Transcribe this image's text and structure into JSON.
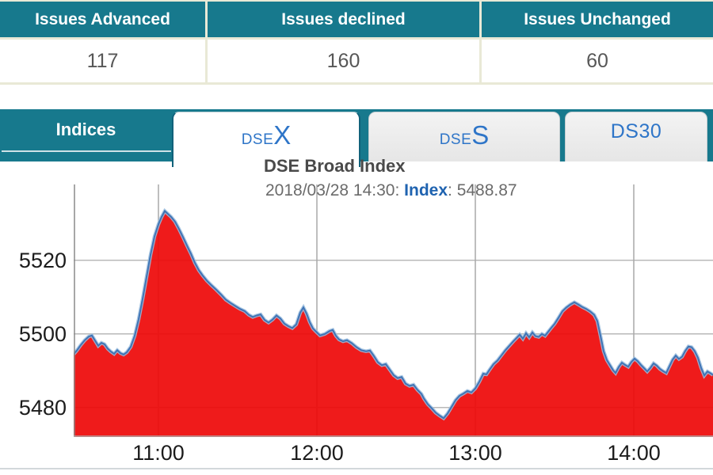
{
  "summary_table": {
    "columns": [
      {
        "header": "Issues Advanced",
        "value": "117"
      },
      {
        "header": "Issues declined",
        "value": "160"
      },
      {
        "header": "Issues Unchanged",
        "value": "60"
      }
    ]
  },
  "indices": {
    "bar_label": "Indices",
    "tabs": [
      {
        "prefix": "DSE",
        "suffix": "X"
      },
      {
        "prefix": "DSE",
        "suffix": "S"
      },
      {
        "prefix": "DS30",
        "suffix": ""
      }
    ]
  },
  "chart": {
    "title": "DSE Broad Index",
    "subtitle_datetime": "2018/03/28 14:30: ",
    "subtitle_label": "Index",
    "subtitle_value": ": 5488.87"
  },
  "colors": {
    "teal": "#17798d",
    "tab_text_blue": "#2e75c8",
    "area_red": "#ee0a0a",
    "line_blue": "#3f74b5",
    "line_halo": "#9dbfdf",
    "grid_h": "#b9b9b9",
    "grid_v": "#a8a8a8",
    "axis": "#8a8a8a",
    "subtitle_index_blue": "#1f63b0"
  },
  "chart_data": {
    "type": "area",
    "title": "DSE Broad Index",
    "timestamp_label": "2018/03/28 14:30",
    "series_name": "DSEX",
    "latest_index": 5488.87,
    "xlabel": "",
    "ylabel": "",
    "grid": true,
    "legend": false,
    "x_range": [
      10.465,
      14.5
    ],
    "y_range": [
      5472,
      5540.6
    ],
    "y_ticks": [
      5480,
      5500,
      5520
    ],
    "x_ticks": [
      {
        "t": 11,
        "label": "11:00"
      },
      {
        "t": 12,
        "label": "12:00"
      },
      {
        "t": 13,
        "label": "13:00"
      },
      {
        "t": 14,
        "label": "14:00"
      }
    ],
    "points": [
      [
        10.465,
        5494.5
      ],
      [
        10.485,
        5495.5
      ],
      [
        10.51,
        5497.0
      ],
      [
        10.535,
        5498.3
      ],
      [
        10.56,
        5499.3
      ],
      [
        10.58,
        5499.6
      ],
      [
        10.6,
        5498.2
      ],
      [
        10.62,
        5496.8
      ],
      [
        10.64,
        5497.6
      ],
      [
        10.66,
        5497.2
      ],
      [
        10.68,
        5496.0
      ],
      [
        10.7,
        5495.2
      ],
      [
        10.72,
        5494.6
      ],
      [
        10.74,
        5495.6
      ],
      [
        10.76,
        5494.8
      ],
      [
        10.78,
        5494.4
      ],
      [
        10.8,
        5495.0
      ],
      [
        10.825,
        5496.5
      ],
      [
        10.85,
        5499.5
      ],
      [
        10.875,
        5504.0
      ],
      [
        10.9,
        5509.5
      ],
      [
        10.925,
        5515.5
      ],
      [
        10.95,
        5521.5
      ],
      [
        10.975,
        5526.5
      ],
      [
        11.0,
        5529.8
      ],
      [
        11.02,
        5531.8
      ],
      [
        11.04,
        5533.4
      ],
      [
        11.06,
        5532.6
      ],
      [
        11.08,
        5531.8
      ],
      [
        11.105,
        5530.5
      ],
      [
        11.13,
        5528.5
      ],
      [
        11.155,
        5526.3
      ],
      [
        11.18,
        5524.0
      ],
      [
        11.205,
        5521.8
      ],
      [
        11.23,
        5519.3
      ],
      [
        11.255,
        5517.3
      ],
      [
        11.28,
        5515.8
      ],
      [
        11.305,
        5514.5
      ],
      [
        11.335,
        5513.2
      ],
      [
        11.365,
        5512.0
      ],
      [
        11.395,
        5510.7
      ],
      [
        11.425,
        5509.3
      ],
      [
        11.455,
        5508.4
      ],
      [
        11.485,
        5507.6
      ],
      [
        11.515,
        5506.8
      ],
      [
        11.545,
        5506.2
      ],
      [
        11.57,
        5505.2
      ],
      [
        11.595,
        5504.6
      ],
      [
        11.62,
        5505.0
      ],
      [
        11.645,
        5505.3
      ],
      [
        11.67,
        5503.8
      ],
      [
        11.695,
        5503.1
      ],
      [
        11.72,
        5503.9
      ],
      [
        11.745,
        5505.0
      ],
      [
        11.77,
        5504.2
      ],
      [
        11.795,
        5502.8
      ],
      [
        11.82,
        5502.1
      ],
      [
        11.845,
        5501.6
      ],
      [
        11.87,
        5502.6
      ],
      [
        11.895,
        5505.8
      ],
      [
        11.915,
        5507.2
      ],
      [
        11.935,
        5505.5
      ],
      [
        11.955,
        5503.2
      ],
      [
        11.975,
        5501.5
      ],
      [
        12.0,
        5500.4
      ],
      [
        12.02,
        5499.6
      ],
      [
        12.05,
        5500.0
      ],
      [
        12.08,
        5500.8
      ],
      [
        12.1,
        5501.1
      ],
      [
        12.12,
        5499.5
      ],
      [
        12.14,
        5498.5
      ],
      [
        12.165,
        5498.0
      ],
      [
        12.19,
        5498.3
      ],
      [
        12.22,
        5497.5
      ],
      [
        12.25,
        5496.4
      ],
      [
        12.28,
        5495.6
      ],
      [
        12.31,
        5495.3
      ],
      [
        12.335,
        5495.5
      ],
      [
        12.36,
        5494.0
      ],
      [
        12.385,
        5492.3
      ],
      [
        12.41,
        5491.5
      ],
      [
        12.435,
        5491.8
      ],
      [
        12.46,
        5490.3
      ],
      [
        12.485,
        5488.8
      ],
      [
        12.51,
        5488.0
      ],
      [
        12.535,
        5488.3
      ],
      [
        12.56,
        5486.5
      ],
      [
        12.585,
        5485.9
      ],
      [
        12.61,
        5486.2
      ],
      [
        12.635,
        5484.8
      ],
      [
        12.66,
        5483.7
      ],
      [
        12.675,
        5482.5
      ],
      [
        12.7,
        5480.9
      ],
      [
        12.725,
        5479.8
      ],
      [
        12.75,
        5478.6
      ],
      [
        12.775,
        5477.8
      ],
      [
        12.8,
        5477.1
      ],
      [
        12.825,
        5478.4
      ],
      [
        12.85,
        5480.2
      ],
      [
        12.875,
        5482.0
      ],
      [
        12.9,
        5483.2
      ],
      [
        12.925,
        5483.8
      ],
      [
        12.95,
        5484.5
      ],
      [
        12.975,
        5484.1
      ],
      [
        13.0,
        5485.2
      ],
      [
        13.025,
        5487.0
      ],
      [
        13.05,
        5489.2
      ],
      [
        13.07,
        5489.0
      ],
      [
        13.09,
        5490.3
      ],
      [
        13.115,
        5491.8
      ],
      [
        13.14,
        5492.8
      ],
      [
        13.165,
        5494.2
      ],
      [
        13.19,
        5495.6
      ],
      [
        13.215,
        5496.8
      ],
      [
        13.24,
        5498.0
      ],
      [
        13.26,
        5498.9
      ],
      [
        13.28,
        5499.8
      ],
      [
        13.3,
        5498.7
      ],
      [
        13.32,
        5500.2
      ],
      [
        13.34,
        5499.1
      ],
      [
        13.36,
        5500.4
      ],
      [
        13.38,
        5499.4
      ],
      [
        13.4,
        5499.2
      ],
      [
        13.42,
        5500.0
      ],
      [
        13.44,
        5499.5
      ],
      [
        13.46,
        5500.6
      ],
      [
        13.48,
        5501.7
      ],
      [
        13.5,
        5502.7
      ],
      [
        13.525,
        5504.4
      ],
      [
        13.55,
        5506.2
      ],
      [
        13.575,
        5507.2
      ],
      [
        13.6,
        5508.0
      ],
      [
        13.625,
        5508.6
      ],
      [
        13.65,
        5508.0
      ],
      [
        13.675,
        5507.3
      ],
      [
        13.7,
        5506.8
      ],
      [
        13.725,
        5506.1
      ],
      [
        13.75,
        5505.2
      ],
      [
        13.77,
        5503.5
      ],
      [
        13.79,
        5499.5
      ],
      [
        13.81,
        5495.3
      ],
      [
        13.83,
        5492.9
      ],
      [
        13.85,
        5491.5
      ],
      [
        13.87,
        5490.1
      ],
      [
        13.885,
        5489.4
      ],
      [
        13.905,
        5491.0
      ],
      [
        13.925,
        5492.2
      ],
      [
        13.945,
        5491.6
      ],
      [
        13.965,
        5491.1
      ],
      [
        13.985,
        5492.4
      ],
      [
        14.005,
        5493.3
      ],
      [
        14.025,
        5492.6
      ],
      [
        14.045,
        5491.6
      ],
      [
        14.065,
        5490.7
      ],
      [
        14.085,
        5489.8
      ],
      [
        14.105,
        5490.8
      ],
      [
        14.125,
        5492.0
      ],
      [
        14.145,
        5491.4
      ],
      [
        14.165,
        5490.5
      ],
      [
        14.185,
        5489.9
      ],
      [
        14.205,
        5489.4
      ],
      [
        14.225,
        5491.2
      ],
      [
        14.245,
        5493.0
      ],
      [
        14.265,
        5494.1
      ],
      [
        14.285,
        5493.2
      ],
      [
        14.305,
        5493.8
      ],
      [
        14.325,
        5495.4
      ],
      [
        14.345,
        5496.6
      ],
      [
        14.365,
        5496.4
      ],
      [
        14.385,
        5495.3
      ],
      [
        14.405,
        5493.5
      ],
      [
        14.425,
        5490.8
      ],
      [
        14.445,
        5488.7
      ],
      [
        14.465,
        5489.8
      ],
      [
        14.485,
        5489.3
      ],
      [
        14.5,
        5488.87
      ]
    ]
  }
}
